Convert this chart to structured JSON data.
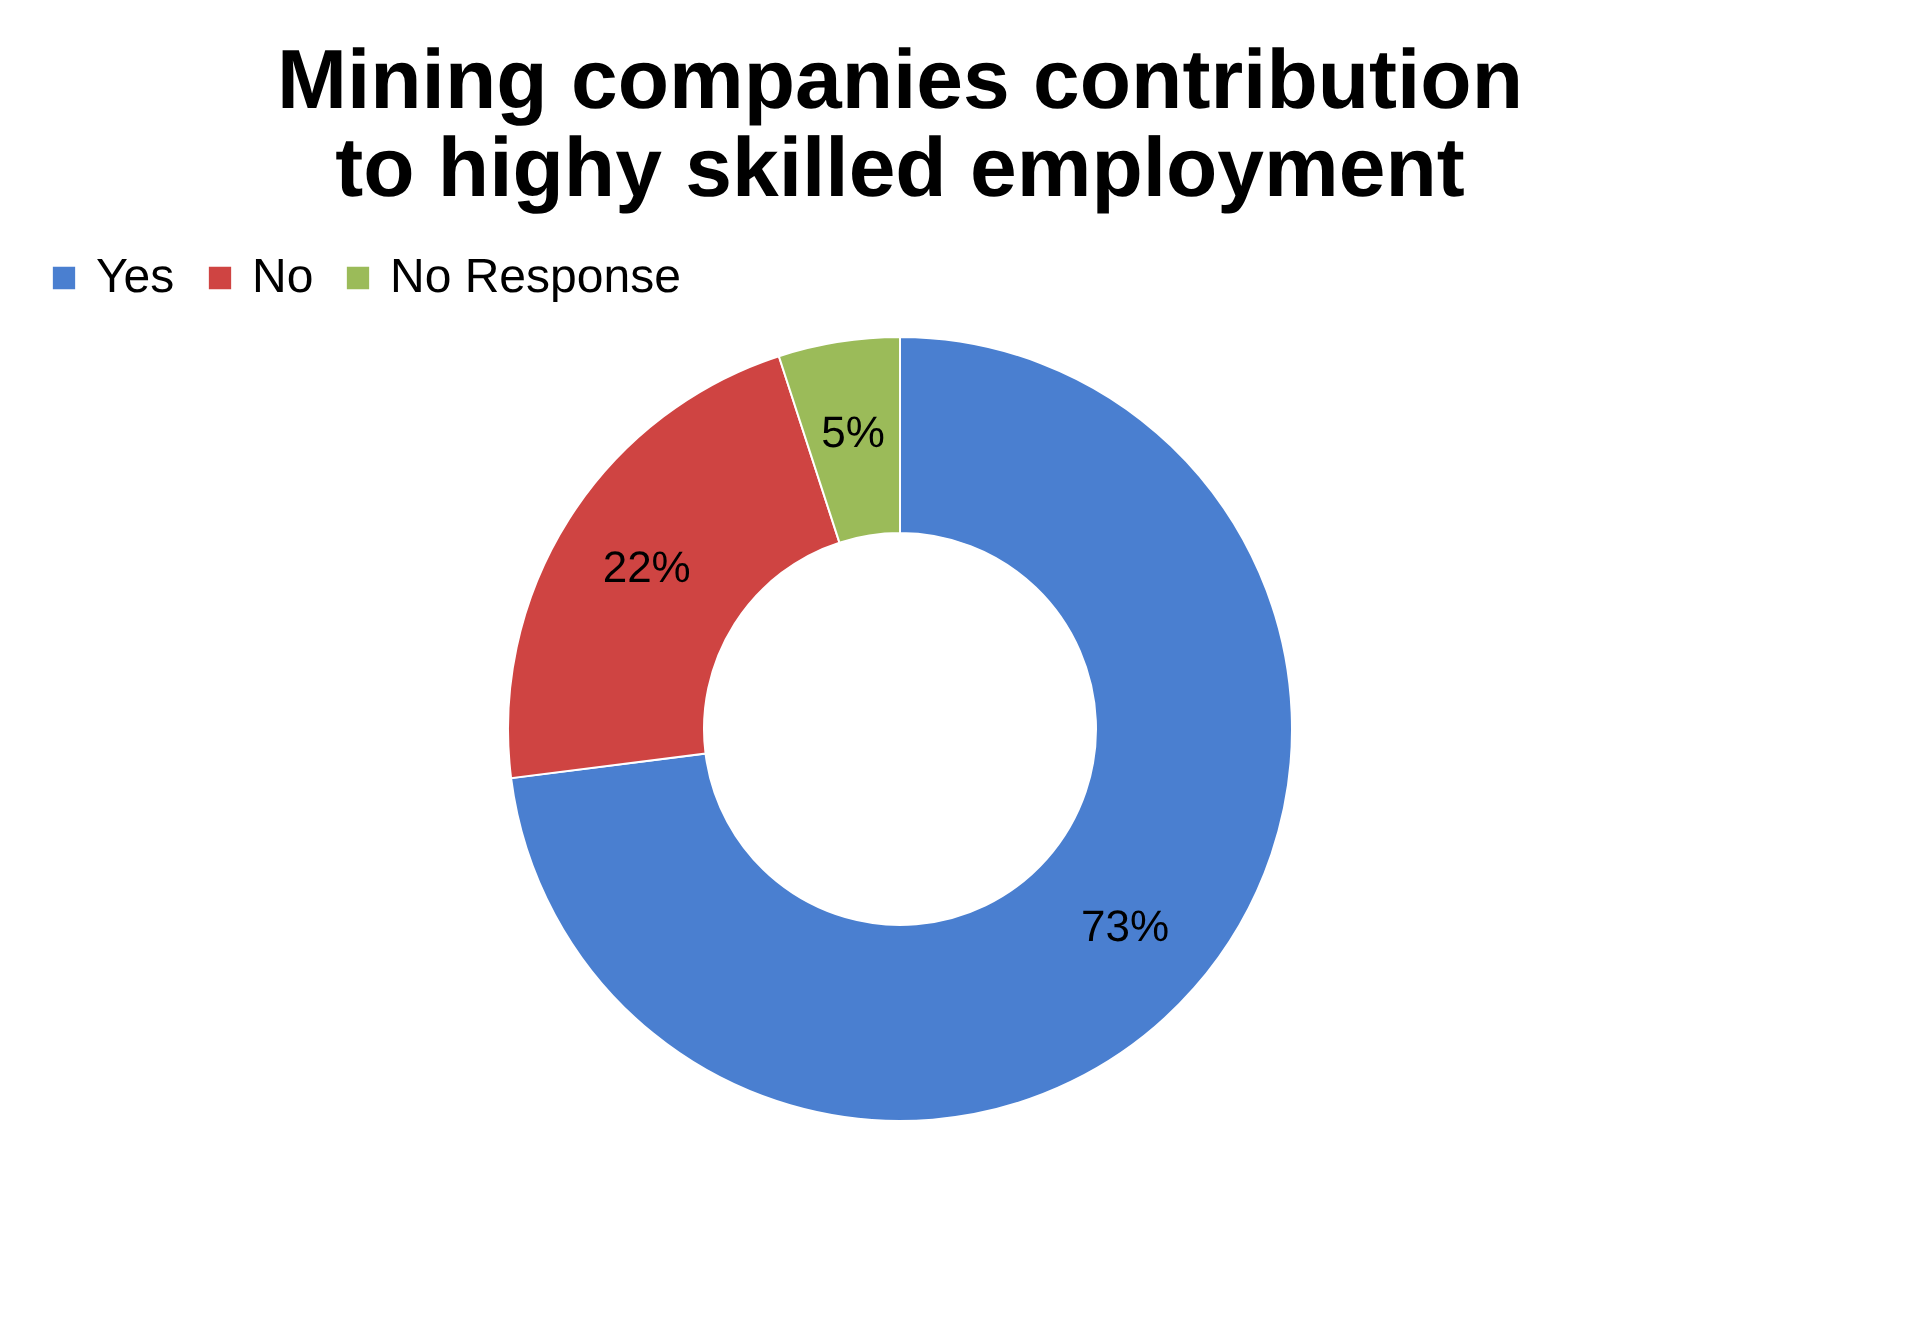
{
  "chart_data": {
    "type": "donut",
    "title": [
      "Mining companies contribution",
      "to highy skilled employment"
    ],
    "categories": [
      "Yes",
      "No",
      "No Response"
    ],
    "values": [
      73,
      22,
      5
    ],
    "colors": [
      "#4a7fd0",
      "#cf4442",
      "#9bbb59"
    ],
    "value_labels": [
      "73%",
      "22%",
      "5%"
    ],
    "legend": "top"
  }
}
